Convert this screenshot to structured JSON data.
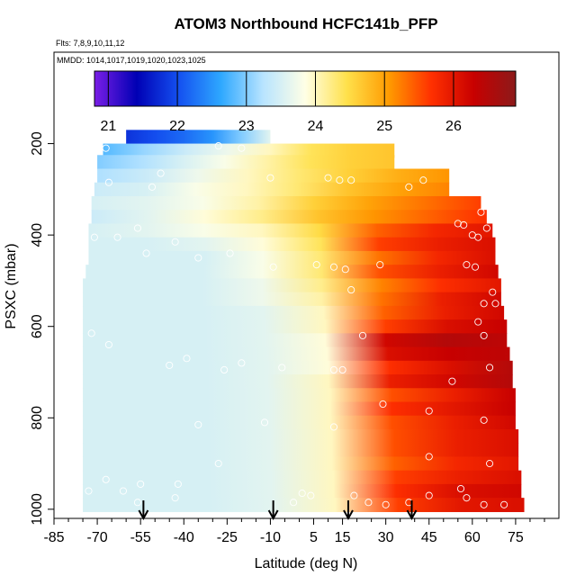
{
  "chart_data": {
    "type": "heatmap",
    "title": "ATOM3 Northbound HCFC141b_PFP",
    "flights_label": "Flts: 7,8,9,10,11,12",
    "dates_label": "MMDD: 1014,1017,1019,1020,1023,1025",
    "xlabel": "Latitude (deg N)",
    "ylabel": "PSXC (mbar)",
    "xlim": [
      -85,
      90
    ],
    "ylim": [
      1020,
      0
    ],
    "x_ticks": [
      -85,
      -70,
      -55,
      -40,
      -25,
      -10,
      5,
      15,
      30,
      45,
      60,
      75
    ],
    "x_tick_labels": [
      "-85",
      "-70",
      "-55",
      "-40",
      "-25",
      "-10",
      "5",
      "15",
      "30",
      "45",
      "60",
      "75"
    ],
    "y_ticks": [
      200,
      400,
      600,
      800,
      1000
    ],
    "y_tick_labels": [
      "200",
      "400",
      "600",
      "800",
      "1000"
    ],
    "colorbar": {
      "min": 20.8,
      "max": 26.9,
      "ticks": [
        21,
        22,
        23,
        24,
        25,
        26
      ],
      "tick_labels": [
        "21",
        "22",
        "23",
        "24",
        "25",
        "26"
      ],
      "colors": [
        "#7a1ee6",
        "#0000b4",
        "#1450f0",
        "#2ea8ff",
        "#b8e4ff",
        "#ffffe6",
        "#ffe04a",
        "#ff9a00",
        "#ff3000",
        "#c80000",
        "#8c1a1a"
      ]
    },
    "arrows_latitude": [
      -54,
      -9,
      17,
      39
    ],
    "bands": [
      {
        "p": 185,
        "lat": [
          -60,
          -10
        ],
        "v": [
          21.8,
          22.0,
          22.2,
          22.5,
          23.0,
          23.6
        ]
      },
      {
        "p": 215,
        "lat": [
          -68,
          33
        ],
        "v": [
          22.8,
          23.1,
          23.4,
          23.7,
          24.0,
          24.4,
          24.6,
          24.7
        ]
      },
      {
        "p": 240,
        "lat": [
          -70,
          33
        ],
        "v": [
          23.0,
          23.2,
          23.5,
          23.8,
          24.1,
          24.4,
          24.6,
          24.7
        ]
      },
      {
        "p": 270,
        "lat": [
          -70,
          52
        ],
        "v": [
          23.2,
          23.4,
          23.7,
          24.0,
          24.3,
          24.6,
          24.9,
          25.1
        ]
      },
      {
        "p": 300,
        "lat": [
          -71,
          52
        ],
        "v": [
          23.4,
          23.5,
          23.8,
          24.0,
          24.3,
          24.7,
          25.0,
          25.2
        ]
      },
      {
        "p": 330,
        "lat": [
          -72,
          63
        ],
        "v": [
          23.5,
          23.6,
          23.8,
          24.1,
          24.6,
          25.0,
          25.3,
          25.6
        ]
      },
      {
        "p": 360,
        "lat": [
          -72,
          65
        ],
        "v": [
          23.4,
          23.6,
          23.9,
          24.2,
          24.7,
          25.1,
          25.4,
          25.7
        ]
      },
      {
        "p": 390,
        "lat": [
          -73,
          67
        ],
        "v": [
          23.5,
          23.6,
          23.8,
          24.0,
          24.5,
          25.4,
          25.8,
          26.0
        ]
      },
      {
        "p": 420,
        "lat": [
          -73,
          68
        ],
        "v": [
          23.5,
          23.5,
          23.6,
          23.9,
          24.4,
          25.6,
          25.9,
          26.1
        ]
      },
      {
        "p": 450,
        "lat": [
          -73,
          68
        ],
        "v": [
          23.5,
          23.5,
          23.5,
          23.8,
          24.3,
          25.3,
          25.8,
          26.1
        ]
      },
      {
        "p": 480,
        "lat": [
          -74,
          69
        ],
        "v": [
          23.5,
          23.5,
          23.5,
          23.8,
          24.3,
          25.5,
          25.9,
          26.2
        ]
      },
      {
        "p": 510,
        "lat": [
          -75,
          70
        ],
        "v": [
          23.5,
          23.5,
          23.5,
          23.7,
          24.2,
          25.2,
          25.7,
          26.0
        ]
      },
      {
        "p": 540,
        "lat": [
          -75,
          70
        ],
        "v": [
          23.5,
          23.5,
          23.5,
          23.7,
          24.1,
          25.3,
          25.9,
          26.2
        ]
      },
      {
        "p": 570,
        "lat": [
          -75,
          71
        ],
        "v": [
          23.5,
          23.5,
          23.5,
          23.6,
          24.0,
          25.4,
          25.9,
          26.2
        ]
      },
      {
        "p": 600,
        "lat": [
          -75,
          72
        ],
        "v": [
          23.5,
          23.5,
          23.5,
          23.6,
          24.0,
          25.6,
          26.1,
          26.3
        ]
      },
      {
        "p": 630,
        "lat": [
          -75,
          72
        ],
        "v": [
          23.5,
          23.5,
          23.5,
          23.6,
          23.9,
          26.2,
          26.5,
          26.4
        ]
      },
      {
        "p": 660,
        "lat": [
          -75,
          73
        ],
        "v": [
          23.5,
          23.5,
          23.5,
          23.6,
          23.9,
          26.1,
          26.3,
          26.4
        ]
      },
      {
        "p": 690,
        "lat": [
          -75,
          74
        ],
        "v": [
          23.5,
          23.5,
          23.5,
          23.6,
          23.9,
          25.7,
          26.1,
          26.5
        ]
      },
      {
        "p": 720,
        "lat": [
          -75,
          74
        ],
        "v": [
          23.5,
          23.5,
          23.5,
          23.6,
          24.0,
          25.9,
          26.2,
          26.5
        ]
      },
      {
        "p": 750,
        "lat": [
          -75,
          75
        ],
        "v": [
          23.5,
          23.5,
          23.5,
          23.6,
          24.0,
          25.5,
          25.9,
          26.3
        ]
      },
      {
        "p": 780,
        "lat": [
          -75,
          75
        ],
        "v": [
          23.5,
          23.5,
          23.5,
          23.6,
          24.0,
          25.7,
          26.0,
          26.3
        ]
      },
      {
        "p": 810,
        "lat": [
          -75,
          75
        ],
        "v": [
          23.5,
          23.5,
          23.5,
          23.6,
          24.0,
          25.5,
          25.9,
          26.2
        ]
      },
      {
        "p": 840,
        "lat": [
          -75,
          76
        ],
        "v": [
          23.5,
          23.5,
          23.5,
          23.6,
          24.0,
          25.5,
          25.9,
          26.1
        ]
      },
      {
        "p": 870,
        "lat": [
          -75,
          76
        ],
        "v": [
          23.5,
          23.5,
          23.5,
          23.6,
          24.0,
          25.5,
          25.9,
          26.1
        ]
      },
      {
        "p": 900,
        "lat": [
          -75,
          76
        ],
        "v": [
          23.5,
          23.5,
          23.5,
          23.6,
          24.0,
          25.4,
          25.8,
          26.0
        ]
      },
      {
        "p": 930,
        "lat": [
          -75,
          77
        ],
        "v": [
          23.5,
          23.5,
          23.5,
          23.6,
          24.0,
          25.6,
          25.9,
          26.1
        ]
      },
      {
        "p": 960,
        "lat": [
          -75,
          77
        ],
        "v": [
          23.5,
          23.5,
          23.5,
          23.6,
          24.0,
          25.7,
          26.1,
          26.2
        ]
      },
      {
        "p": 990,
        "lat": [
          -75,
          78
        ],
        "v": [
          23.5,
          23.5,
          23.5,
          23.6,
          24.0,
          25.6,
          26.0,
          26.1
        ]
      }
    ],
    "samples": [
      {
        "lat": -67,
        "p": 210
      },
      {
        "lat": -28,
        "p": 205
      },
      {
        "lat": -20,
        "p": 210
      },
      {
        "lat": -66,
        "p": 285
      },
      {
        "lat": -48,
        "p": 265
      },
      {
        "lat": -51,
        "p": 295
      },
      {
        "lat": -10,
        "p": 275
      },
      {
        "lat": 10,
        "p": 275
      },
      {
        "lat": 14,
        "p": 280
      },
      {
        "lat": 18,
        "p": 280
      },
      {
        "lat": 38,
        "p": 295
      },
      {
        "lat": 43,
        "p": 280
      },
      {
        "lat": -71,
        "p": 405
      },
      {
        "lat": -63,
        "p": 405
      },
      {
        "lat": -43,
        "p": 415
      },
      {
        "lat": -56,
        "p": 385
      },
      {
        "lat": 55,
        "p": 375
      },
      {
        "lat": 57,
        "p": 378
      },
      {
        "lat": 60,
        "p": 400
      },
      {
        "lat": 62,
        "p": 405
      },
      {
        "lat": 65,
        "p": 385
      },
      {
        "lat": 71,
        "p": 405
      },
      {
        "lat": 65,
        "p": 335
      },
      {
        "lat": 63,
        "p": 350
      },
      {
        "lat": -53,
        "p": 440
      },
      {
        "lat": -35,
        "p": 450
      },
      {
        "lat": -24,
        "p": 440
      },
      {
        "lat": -9,
        "p": 470
      },
      {
        "lat": 6,
        "p": 465
      },
      {
        "lat": 12,
        "p": 470
      },
      {
        "lat": 16,
        "p": 475
      },
      {
        "lat": 28,
        "p": 465
      },
      {
        "lat": 58,
        "p": 465
      },
      {
        "lat": 61,
        "p": 470
      },
      {
        "lat": 18,
        "p": 520
      },
      {
        "lat": 67,
        "p": 525
      },
      {
        "lat": 64,
        "p": 550
      },
      {
        "lat": 68,
        "p": 550
      },
      {
        "lat": 62,
        "p": 590
      },
      {
        "lat": -72,
        "p": 615
      },
      {
        "lat": 22,
        "p": 620
      },
      {
        "lat": 64,
        "p": 620
      },
      {
        "lat": -66,
        "p": 640
      },
      {
        "lat": -39,
        "p": 670
      },
      {
        "lat": -45,
        "p": 685
      },
      {
        "lat": -20,
        "p": 680
      },
      {
        "lat": -26,
        "p": 695
      },
      {
        "lat": -6,
        "p": 690
      },
      {
        "lat": 12,
        "p": 695
      },
      {
        "lat": 15,
        "p": 695
      },
      {
        "lat": 66,
        "p": 690
      },
      {
        "lat": 53,
        "p": 720
      },
      {
        "lat": 29,
        "p": 770
      },
      {
        "lat": 45,
        "p": 785
      },
      {
        "lat": -35,
        "p": 815
      },
      {
        "lat": -12,
        "p": 810
      },
      {
        "lat": 12,
        "p": 820
      },
      {
        "lat": 64,
        "p": 805
      },
      {
        "lat": 45,
        "p": 885
      },
      {
        "lat": -28,
        "p": 900
      },
      {
        "lat": 66,
        "p": 900
      },
      {
        "lat": -67,
        "p": 935
      },
      {
        "lat": -55,
        "p": 945
      },
      {
        "lat": -42,
        "p": 945
      },
      {
        "lat": 56,
        "p": 955
      },
      {
        "lat": -73,
        "p": 960
      },
      {
        "lat": -61,
        "p": 960
      },
      {
        "lat": 1,
        "p": 965
      },
      {
        "lat": -2,
        "p": 985
      },
      {
        "lat": 4,
        "p": 970
      },
      {
        "lat": 19,
        "p": 970
      },
      {
        "lat": 24,
        "p": 985
      },
      {
        "lat": 30,
        "p": 990
      },
      {
        "lat": 38,
        "p": 985
      },
      {
        "lat": 45,
        "p": 970
      },
      {
        "lat": 58,
        "p": 975
      },
      {
        "lat": 64,
        "p": 990
      },
      {
        "lat": 71,
        "p": 990
      },
      {
        "lat": -43,
        "p": 975
      },
      {
        "lat": -56,
        "p": 985
      }
    ]
  }
}
